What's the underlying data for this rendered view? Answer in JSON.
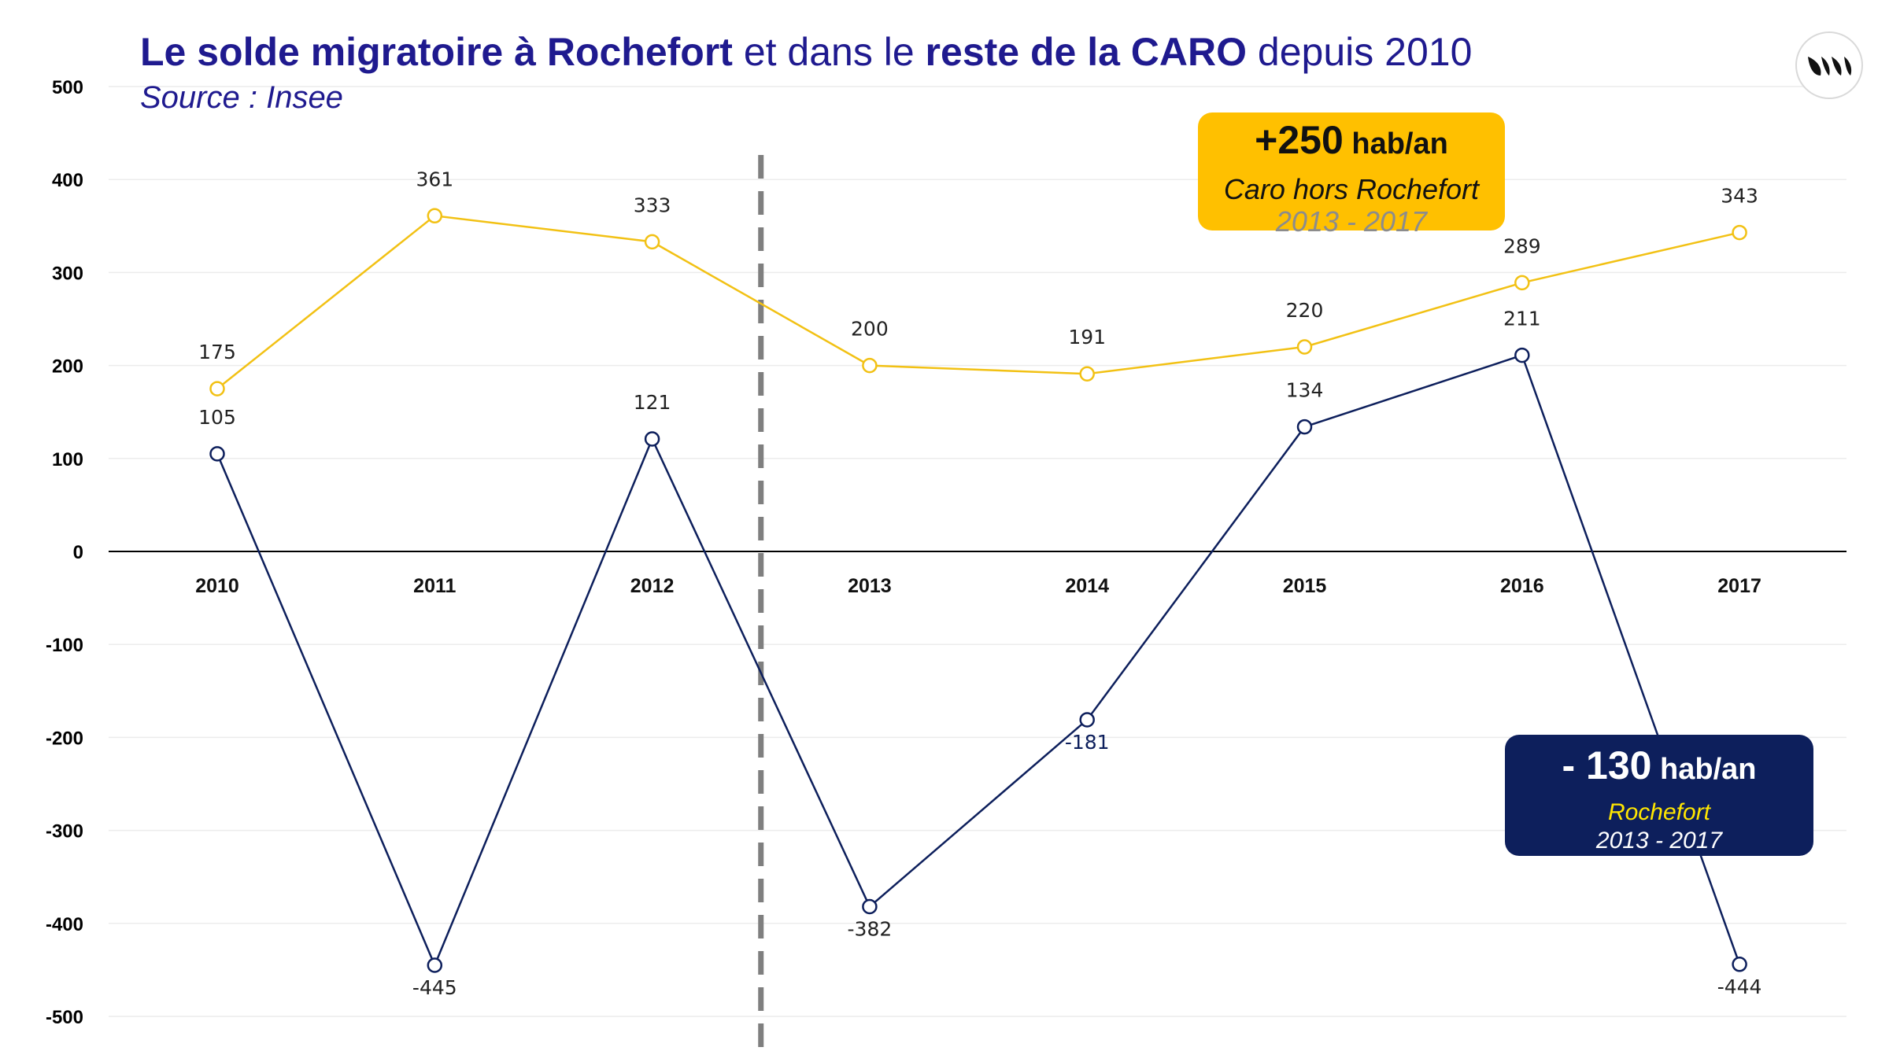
{
  "title": {
    "part1": "Le solde migratoire à Rochefort",
    "part2": " et dans le ",
    "part3": "reste de la CARO",
    "part4": " depuis 2010"
  },
  "subtitle": "Source : Insee",
  "colors": {
    "title": "#1f1a8f",
    "rochefort": "#0d1f5c",
    "caro": "#f2c114",
    "divider": "#7f7f7f",
    "grid": "#ececec",
    "axis": "#000000"
  },
  "callouts": {
    "caro": {
      "value": "+250",
      "unit": " hab/an",
      "label": "Caro hors Rochefort",
      "period": "2013 - 2017"
    },
    "rochefort": {
      "value": "- 130",
      "unit": " hab/an",
      "label": "Rochefort",
      "period": "2013 - 2017"
    }
  },
  "logo": {
    "icon": "three-leaf-logo-icon"
  },
  "chart_data": {
    "type": "line",
    "categories": [
      "2010",
      "2011",
      "2012",
      "2013",
      "2014",
      "2015",
      "2016",
      "2017"
    ],
    "series": [
      {
        "values": [
          175,
          361,
          333,
          200,
          191,
          220,
          289,
          343
        ],
        "color": "#f2c114"
      },
      {
        "values": [
          105,
          -445,
          121,
          -382,
          -181,
          134,
          211,
          -444
        ],
        "color": "#0d1f5c"
      }
    ],
    "ylim": [
      -500,
      500
    ],
    "yticks": [
      500,
      400,
      300,
      200,
      100,
      0,
      -100,
      -200,
      -300,
      -400,
      -500
    ],
    "grid": true,
    "divider_after": "2012",
    "xlabel": "",
    "ylabel": ""
  }
}
